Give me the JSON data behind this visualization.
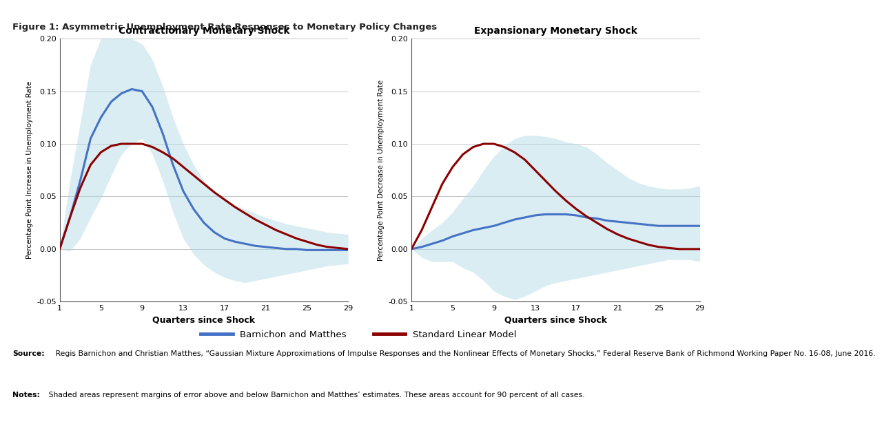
{
  "title": "Figure 1: Asymmetric Unemployment Rate Responses to Monetary Policy Changes",
  "title_bar_color": "#7ab4d8",
  "title_text_color": "#222222",
  "left_title": "Contractionary Monetary Shock",
  "right_title": "Expansionary Monetary Shock",
  "left_ylabel": "Percentage Point Increase in Unemployment Rate",
  "right_ylabel": "Percentage Point Decrease in Unemployment Rate",
  "xlabel": "Quarters since Shock",
  "xticks": [
    1,
    5,
    9,
    13,
    17,
    21,
    25,
    29
  ],
  "ylim": [
    -0.05,
    0.2
  ],
  "yticks": [
    -0.05,
    0.0,
    0.05,
    0.1,
    0.15,
    0.2
  ],
  "quarters": [
    1,
    2,
    3,
    4,
    5,
    6,
    7,
    8,
    9,
    10,
    11,
    12,
    13,
    14,
    15,
    16,
    17,
    18,
    19,
    20,
    21,
    22,
    23,
    24,
    25,
    26,
    27,
    28,
    29
  ],
  "left_blue": [
    0.0,
    0.03,
    0.065,
    0.105,
    0.125,
    0.14,
    0.148,
    0.152,
    0.15,
    0.135,
    0.11,
    0.08,
    0.055,
    0.038,
    0.025,
    0.016,
    0.01,
    0.007,
    0.005,
    0.003,
    0.002,
    0.001,
    0.0,
    0.0,
    -0.001,
    -0.001,
    -0.001,
    -0.001,
    -0.001
  ],
  "left_blue_upper": [
    0.0,
    0.065,
    0.12,
    0.175,
    0.2,
    0.205,
    0.2,
    0.2,
    0.195,
    0.18,
    0.155,
    0.125,
    0.1,
    0.08,
    0.065,
    0.055,
    0.048,
    0.042,
    0.038,
    0.034,
    0.03,
    0.027,
    0.024,
    0.022,
    0.02,
    0.018,
    0.016,
    0.015,
    0.014
  ],
  "left_blue_lower": [
    0.0,
    -0.002,
    0.01,
    0.03,
    0.048,
    0.07,
    0.09,
    0.1,
    0.105,
    0.09,
    0.065,
    0.035,
    0.01,
    -0.005,
    -0.015,
    -0.022,
    -0.027,
    -0.03,
    -0.032,
    -0.03,
    -0.028,
    -0.026,
    -0.024,
    -0.022,
    -0.02,
    -0.018,
    -0.016,
    -0.015,
    -0.014
  ],
  "left_red": [
    0.0,
    0.03,
    0.058,
    0.08,
    0.092,
    0.098,
    0.1,
    0.1,
    0.1,
    0.097,
    0.092,
    0.086,
    0.078,
    0.07,
    0.062,
    0.054,
    0.047,
    0.04,
    0.034,
    0.028,
    0.023,
    0.018,
    0.014,
    0.01,
    0.007,
    0.004,
    0.002,
    0.001,
    0.0
  ],
  "right_blue": [
    0.0,
    0.002,
    0.005,
    0.008,
    0.012,
    0.015,
    0.018,
    0.02,
    0.022,
    0.025,
    0.028,
    0.03,
    0.032,
    0.033,
    0.033,
    0.033,
    0.032,
    0.03,
    0.029,
    0.027,
    0.026,
    0.025,
    0.024,
    0.023,
    0.022,
    0.022,
    0.022,
    0.022,
    0.022
  ],
  "right_blue_upper": [
    0.0,
    0.01,
    0.018,
    0.025,
    0.035,
    0.048,
    0.06,
    0.075,
    0.088,
    0.098,
    0.105,
    0.108,
    0.108,
    0.107,
    0.105,
    0.102,
    0.1,
    0.097,
    0.09,
    0.082,
    0.075,
    0.068,
    0.063,
    0.06,
    0.058,
    0.057,
    0.057,
    0.058,
    0.06
  ],
  "right_blue_lower": [
    0.0,
    -0.008,
    -0.012,
    -0.012,
    -0.012,
    -0.018,
    -0.022,
    -0.03,
    -0.04,
    -0.045,
    -0.048,
    -0.045,
    -0.04,
    -0.035,
    -0.032,
    -0.03,
    -0.028,
    -0.026,
    -0.024,
    -0.022,
    -0.02,
    -0.018,
    -0.016,
    -0.014,
    -0.012,
    -0.01,
    -0.01,
    -0.01,
    -0.012
  ],
  "right_red": [
    0.0,
    0.018,
    0.04,
    0.062,
    0.078,
    0.09,
    0.097,
    0.1,
    0.1,
    0.097,
    0.092,
    0.085,
    0.075,
    0.065,
    0.055,
    0.046,
    0.038,
    0.031,
    0.025,
    0.019,
    0.014,
    0.01,
    0.007,
    0.004,
    0.002,
    0.001,
    0.0,
    0.0,
    0.0
  ],
  "blue_color": "#4472c4",
  "red_color": "#8b0000",
  "fill_color": "#add8e6",
  "fill_alpha": 0.45,
  "source_bold": "Source:",
  "source_rest": " Regis Barnichon and Christian Matthes, “Gaussian Mixture Approximations of Impulse Responses and the Nonlinear Effects of Monetary Shocks,” Federal Reserve Bank of Richmond Working Paper No. 16-08, June 2016.",
  "notes_bold": "Notes:",
  "notes_rest": " Shaded areas represent margins of error above and below Barnichon and Matthes’ estimates. These areas account for 90 percent of all cases.",
  "legend_blue": "Barnichon and Matthes",
  "legend_red": "Standard Linear Model",
  "background_color": "#ffffff",
  "grid_color": "#bbbbbb"
}
